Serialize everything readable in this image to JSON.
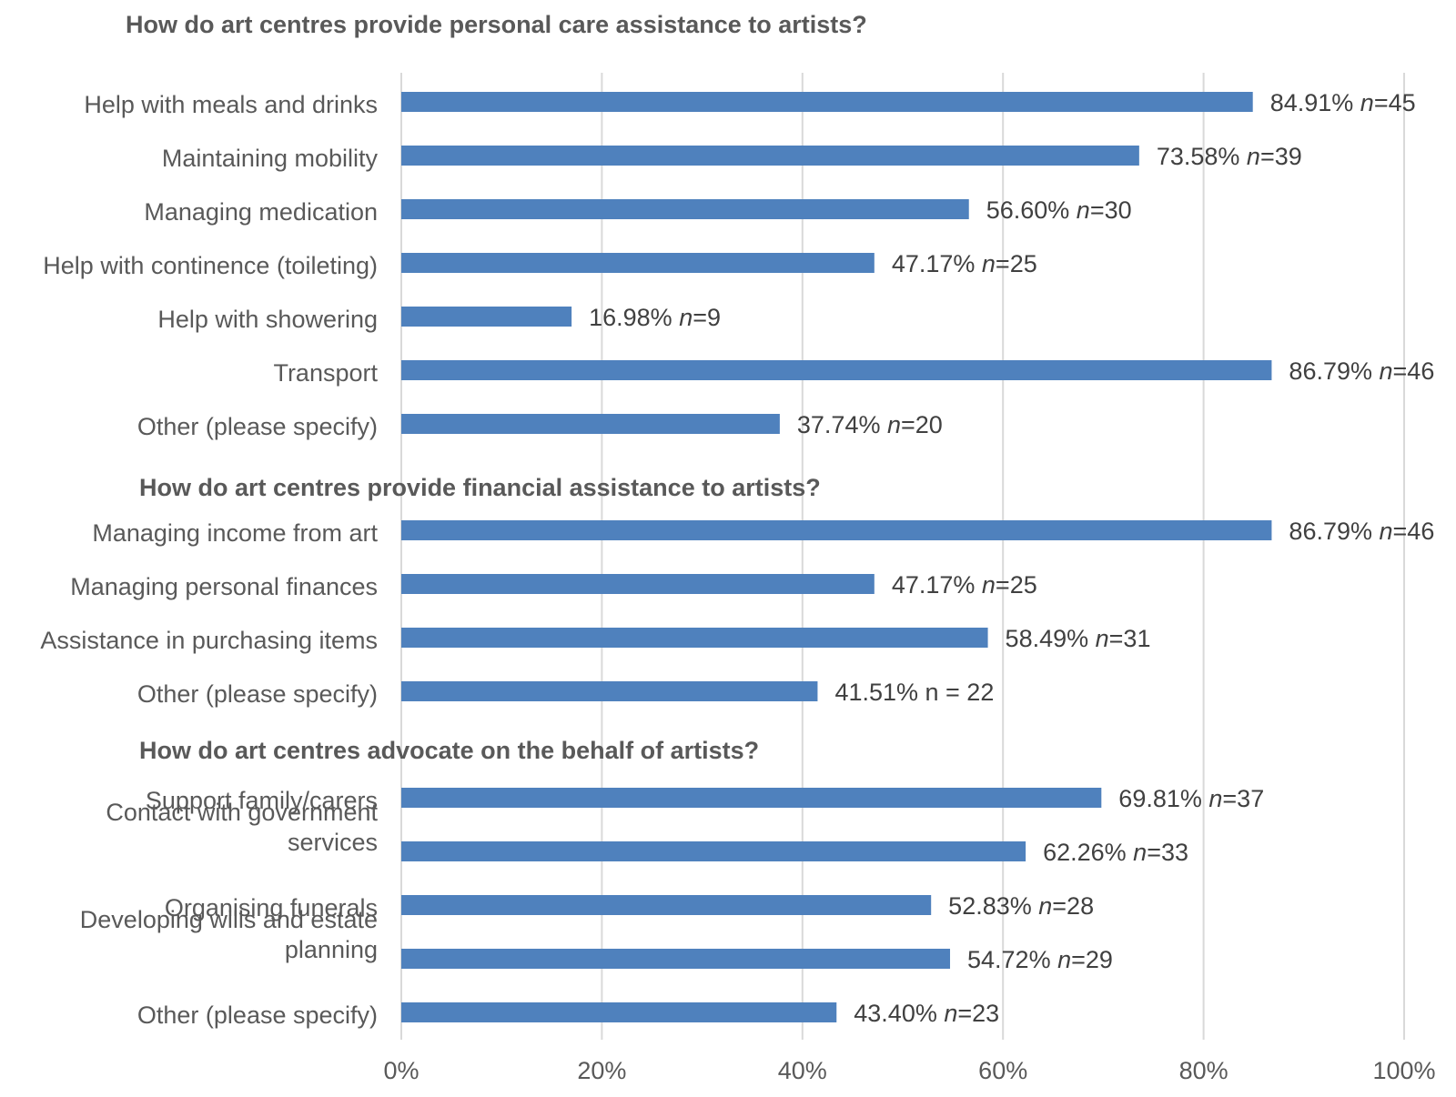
{
  "chart_data": {
    "type": "bar",
    "orientation": "horizontal",
    "color": "#4f81bd",
    "xlim": [
      0,
      100
    ],
    "ticks": [
      "0%",
      "20%",
      "40%",
      "60%",
      "80%",
      "100%"
    ],
    "grid": true,
    "sections": [
      {
        "title": "How do art centres provide personal care assistance to artists?",
        "items": [
          {
            "label": "Help with meals and drinks",
            "value": 84.91,
            "pct": "84.91%",
            "n": "45"
          },
          {
            "label": "Maintaining mobility",
            "value": 73.58,
            "pct": "73.58%",
            "n": "39"
          },
          {
            "label": "Managing medication",
            "value": 56.6,
            "pct": "56.60%",
            "n": "30"
          },
          {
            "label": "Help with continence (toileting)",
            "value": 47.17,
            "pct": "47.17%",
            "n": "25"
          },
          {
            "label": "Help with showering",
            "value": 16.98,
            "pct": "16.98%",
            "n": "9"
          },
          {
            "label": "Transport",
            "value": 86.79,
            "pct": "86.79%",
            "n": "46"
          },
          {
            "label": "Other (please specify)",
            "value": 37.74,
            "pct": "37.74%",
            "n": "20"
          }
        ]
      },
      {
        "title": "How do art centres provide financial assistance to artists?",
        "items": [
          {
            "label": "Managing income from art",
            "value": 86.79,
            "pct": "86.79%",
            "n": "46"
          },
          {
            "label": "Managing personal finances",
            "value": 47.17,
            "pct": "47.17%",
            "n": "25"
          },
          {
            "label": "Assistance in purchasing items",
            "value": 58.49,
            "pct": "58.49%",
            "n": "31"
          },
          {
            "label": "Other (please specify)",
            "value": 41.51,
            "pct": "41.51%",
            "n": "22",
            "plain": "41.51% n = 22"
          }
        ]
      },
      {
        "title": "How do art centres advocate on the behalf of artists?",
        "items": [
          {
            "label": "Support family/carers",
            "value": 69.81,
            "pct": "69.81%",
            "n": "37"
          },
          {
            "label": [
              "Contact with government",
              "services"
            ],
            "value": 62.26,
            "pct": "62.26%",
            "n": "33"
          },
          {
            "label": "Organising funerals",
            "value": 52.83,
            "pct": "52.83%",
            "n": "28"
          },
          {
            "label": [
              "Developing wills and estate",
              "planning"
            ],
            "value": 54.72,
            "pct": "54.72%",
            "n": "29"
          },
          {
            "label": "Other (please specify)",
            "value": 43.4,
            "pct": "43.40%",
            "n": "23"
          }
        ]
      }
    ]
  }
}
